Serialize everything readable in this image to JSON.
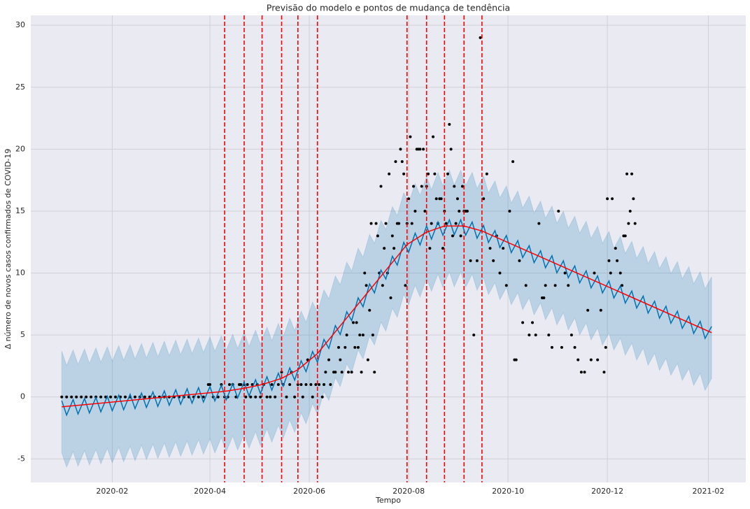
{
  "chart_data": {
    "type": "line",
    "title": "Previsão do modelo e pontos de mudança de tendência",
    "xlabel": "Tempo",
    "ylabel": "Δ número de novos casos confirmados de COVID-19",
    "xlim": [
      -19,
      420
    ],
    "ylim": [
      -6.9,
      30.8
    ],
    "xticks": [
      {
        "value": 31,
        "label": "2020-02"
      },
      {
        "value": 91,
        "label": "2020-04"
      },
      {
        "value": 152,
        "label": "2020-06"
      },
      {
        "value": 213,
        "label": "2020-08"
      },
      {
        "value": 274,
        "label": "2020-10"
      },
      {
        "value": 335,
        "label": "2020-12"
      },
      {
        "value": 397,
        "label": "2021-02"
      }
    ],
    "yticks": [
      -5,
      0,
      5,
      10,
      15,
      20,
      25,
      30
    ],
    "grid": true,
    "changepoints": {
      "color": "#ff0000",
      "x": [
        100,
        112,
        123,
        135,
        145,
        157,
        212,
        224,
        235,
        247,
        258
      ]
    },
    "series": [
      {
        "type": "band",
        "color": "#0072b2",
        "x": [
          0,
          3,
          7,
          10,
          14,
          17,
          21,
          24,
          28,
          31,
          35,
          38,
          42,
          45,
          49,
          52,
          56,
          59,
          63,
          66,
          70,
          73,
          77,
          80,
          84,
          87,
          91,
          94,
          98,
          101,
          105,
          108,
          112,
          115,
          119,
          122,
          126,
          129,
          133,
          136,
          140,
          143,
          147,
          150,
          154,
          157,
          161,
          164,
          168,
          171,
          175,
          178,
          182,
          185,
          189,
          192,
          196,
          199,
          203,
          206,
          210,
          213,
          217,
          220,
          224,
          227,
          231,
          234,
          238,
          241,
          245,
          248,
          252,
          255,
          259,
          262,
          266,
          269,
          273,
          276,
          280,
          283,
          287,
          290,
          294,
          297,
          301,
          304,
          308,
          311,
          315,
          318,
          322,
          325,
          329,
          332,
          336,
          339,
          343,
          346,
          350,
          353,
          357,
          360,
          364,
          367,
          371,
          374,
          378,
          381,
          385,
          388,
          392,
          395,
          399
        ],
        "upper": [
          3.7,
          2.54,
          3.79,
          2.62,
          3.87,
          2.71,
          3.96,
          2.8,
          4.05,
          2.89,
          4.14,
          2.97,
          4.22,
          3.06,
          4.31,
          3.15,
          4.4,
          3.24,
          4.49,
          3.33,
          4.58,
          3.41,
          4.66,
          3.5,
          4.75,
          3.59,
          4.84,
          3.68,
          4.93,
          3.77,
          5.05,
          3.92,
          5.2,
          4.08,
          5.39,
          4.27,
          5.63,
          4.55,
          5.92,
          4.87,
          6.35,
          5.36,
          6.92,
          6.04,
          7.67,
          6.8,
          8.64,
          7.92,
          9.76,
          9.04,
          10.88,
          10.16,
          12.0,
          11.28,
          13.12,
          12.4,
          14.24,
          13.52,
          15.36,
          14.64,
          16.48,
          15.68,
          17.22,
          16.27,
          17.8,
          16.74,
          18.12,
          17.05,
          18.3,
          17.1,
          18.3,
          17.06,
          18.12,
          16.81,
          17.84,
          16.47,
          17.43,
          16.06,
          17.03,
          15.65,
          16.62,
          15.25,
          16.21,
          14.84,
          15.8,
          14.43,
          15.4,
          14.02,
          14.99,
          13.62,
          14.58,
          13.21,
          14.18,
          12.8,
          13.77,
          12.4,
          13.36,
          11.99,
          12.96,
          11.58,
          12.55,
          11.18,
          12.14,
          10.77,
          11.73,
          10.36,
          11.32,
          9.95,
          10.92,
          9.54,
          10.51,
          9.13,
          10.1,
          8.73,
          9.69
        ],
        "lower": [
          -4.5,
          -5.66,
          -4.41,
          -5.58,
          -4.33,
          -5.49,
          -4.24,
          -5.4,
          -4.15,
          -5.31,
          -4.06,
          -5.23,
          -3.98,
          -5.14,
          -3.89,
          -5.05,
          -3.8,
          -4.96,
          -3.71,
          -4.87,
          -3.62,
          -4.79,
          -3.54,
          -4.7,
          -3.45,
          -4.61,
          -3.36,
          -4.52,
          -3.27,
          -4.43,
          -3.15,
          -4.28,
          -3.0,
          -4.12,
          -2.81,
          -3.93,
          -2.57,
          -3.65,
          -2.28,
          -3.33,
          -1.85,
          -2.84,
          -1.28,
          -2.16,
          -0.53,
          -1.4,
          0.44,
          -0.28,
          1.56,
          0.84,
          2.68,
          1.96,
          3.8,
          3.08,
          4.92,
          4.2,
          6.04,
          5.32,
          7.16,
          6.44,
          8.28,
          7.48,
          9.02,
          8.07,
          9.6,
          8.54,
          9.92,
          8.85,
          10.1,
          8.9,
          10.1,
          8.86,
          9.92,
          8.61,
          9.64,
          8.27,
          9.23,
          7.86,
          8.83,
          7.45,
          8.42,
          7.05,
          8.01,
          6.64,
          7.6,
          6.23,
          7.2,
          5.82,
          6.79,
          5.42,
          6.38,
          5.01,
          5.98,
          4.6,
          5.57,
          4.2,
          5.16,
          3.79,
          4.76,
          3.38,
          4.35,
          2.98,
          3.94,
          2.57,
          3.53,
          2.16,
          3.12,
          1.76,
          2.71,
          1.34,
          2.3,
          0.93,
          1.9,
          0.53,
          1.49
        ]
      },
      {
        "type": "line",
        "color": "#0072b2",
        "x": [
          0,
          3,
          7,
          10,
          14,
          17,
          21,
          24,
          28,
          31,
          35,
          38,
          42,
          45,
          49,
          52,
          56,
          59,
          63,
          66,
          70,
          73,
          77,
          80,
          84,
          87,
          91,
          94,
          98,
          101,
          105,
          108,
          112,
          115,
          119,
          122,
          126,
          129,
          133,
          136,
          140,
          143,
          147,
          150,
          154,
          157,
          161,
          164,
          168,
          171,
          175,
          178,
          182,
          185,
          189,
          192,
          196,
          199,
          203,
          206,
          210,
          213,
          217,
          220,
          224,
          227,
          231,
          234,
          238,
          241,
          245,
          248,
          252,
          255,
          259,
          262,
          266,
          269,
          273,
          276,
          280,
          283,
          287,
          290,
          294,
          297,
          301,
          304,
          308,
          311,
          315,
          318,
          322,
          325,
          329,
          332,
          336,
          339,
          343,
          346,
          350,
          353,
          357,
          360,
          364,
          367,
          371,
          374,
          378,
          381,
          385,
          388,
          392,
          395,
          399
        ],
        "values": [
          -0.3,
          -1.46,
          -0.21,
          -1.38,
          -0.13,
          -1.29,
          -0.04,
          -1.2,
          0.05,
          -1.11,
          0.14,
          -1.03,
          0.22,
          -0.94,
          0.31,
          -0.85,
          0.4,
          -0.76,
          0.49,
          -0.67,
          0.58,
          -0.59,
          0.66,
          -0.5,
          0.75,
          -0.41,
          0.84,
          -0.32,
          0.93,
          -0.23,
          1.05,
          -0.08,
          1.2,
          0.08,
          1.39,
          0.27,
          1.63,
          0.55,
          1.92,
          0.87,
          2.35,
          1.36,
          2.92,
          2.04,
          3.67,
          2.8,
          4.64,
          3.92,
          5.76,
          5.04,
          6.88,
          6.16,
          8.0,
          7.28,
          9.12,
          8.4,
          10.24,
          9.52,
          11.36,
          10.64,
          12.48,
          11.68,
          13.22,
          12.27,
          13.8,
          12.74,
          14.12,
          13.05,
          14.3,
          13.1,
          14.3,
          13.06,
          14.12,
          12.81,
          13.84,
          12.47,
          13.43,
          12.06,
          13.03,
          11.65,
          12.62,
          11.25,
          12.21,
          10.84,
          11.8,
          10.43,
          11.4,
          10.02,
          10.99,
          9.62,
          10.58,
          9.21,
          10.18,
          8.8,
          9.77,
          8.4,
          9.36,
          7.99,
          8.96,
          7.58,
          8.55,
          7.18,
          8.14,
          6.77,
          7.73,
          6.36,
          7.32,
          5.95,
          6.92,
          5.54,
          6.51,
          5.13,
          6.1,
          4.73,
          5.69
        ]
      },
      {
        "type": "line",
        "color": "#ff0000",
        "x": [
          0,
          100,
          112,
          123,
          135,
          145,
          157,
          212,
          224,
          235,
          247,
          258,
          399
        ],
        "values": [
          -0.8,
          0.45,
          0.7,
          1.0,
          1.5,
          2.2,
          3.5,
          12.3,
          13.3,
          13.8,
          13.8,
          13.4,
          5.19
        ]
      },
      {
        "type": "scatter",
        "color": "#000000",
        "x": [
          0,
          3,
          6,
          9,
          12,
          15,
          18,
          21,
          24,
          27,
          30,
          33,
          36,
          39,
          42,
          45,
          48,
          51,
          54,
          57,
          60,
          63,
          66,
          69,
          72,
          75,
          78,
          81,
          84,
          87,
          90,
          91,
          93,
          96,
          98,
          100,
          102,
          103,
          105,
          107,
          109,
          110,
          112,
          113,
          114,
          116,
          117,
          119,
          120,
          122,
          124,
          126,
          128,
          129,
          131,
          133,
          135,
          136,
          138,
          140,
          141,
          143,
          145,
          147,
          148,
          150,
          151,
          153,
          154,
          156,
          158,
          160,
          161,
          162,
          164,
          165,
          167,
          168,
          170,
          171,
          172,
          174,
          175,
          176,
          178,
          179,
          180,
          181,
          182,
          183,
          184,
          185,
          186,
          187,
          188,
          189,
          190,
          191,
          192,
          193,
          194,
          195,
          196,
          197,
          198,
          199,
          200,
          201,
          202,
          203,
          204,
          205,
          206,
          207,
          208,
          209,
          210,
          211,
          212,
          213,
          214,
          215,
          216,
          217,
          218,
          219,
          220,
          221,
          222,
          223,
          224,
          225,
          226,
          227,
          228,
          229,
          230,
          231,
          232,
          233,
          234,
          235,
          236,
          237,
          238,
          239,
          240,
          241,
          242,
          243,
          244,
          245,
          246,
          247,
          248,
          249,
          251,
          253,
          255,
          257,
          259,
          261,
          263,
          265,
          267,
          269,
          271,
          273,
          275,
          277,
          278,
          279,
          281,
          283,
          285,
          287,
          289,
          291,
          293,
          295,
          296,
          297,
          299,
          301,
          303,
          305,
          307,
          309,
          311,
          313,
          315,
          317,
          319,
          321,
          323,
          325,
          327,
          329,
          331,
          333,
          334,
          335,
          336,
          337,
          338,
          340,
          341,
          343,
          344,
          345,
          346,
          347,
          348,
          349,
          350,
          351,
          352
        ],
        "values": [
          0,
          0,
          0,
          0,
          0,
          0,
          0,
          0,
          0,
          0,
          0,
          0,
          0,
          0,
          0,
          0,
          0,
          0,
          0,
          0,
          0,
          0,
          0,
          0,
          0,
          0,
          0,
          0,
          0,
          0,
          1,
          1,
          0,
          0,
          1,
          0,
          0,
          1,
          1,
          0,
          1,
          1,
          1,
          0,
          1,
          0,
          1,
          0,
          1,
          0,
          1,
          0,
          0,
          1,
          0,
          1,
          2,
          1,
          0,
          1,
          2,
          0,
          1,
          1,
          0,
          1,
          3,
          1,
          0,
          1,
          1,
          0,
          1,
          2,
          3,
          1,
          2,
          2,
          4,
          3,
          2,
          4,
          5,
          2,
          2,
          6,
          4,
          6,
          4,
          5,
          2,
          5,
          10,
          9,
          3,
          7,
          14,
          5,
          2,
          14,
          13,
          10,
          17,
          9,
          12,
          14,
          10,
          18,
          8,
          13,
          12,
          19,
          14,
          14,
          20,
          19,
          18,
          9,
          14,
          16,
          21,
          14,
          17,
          15,
          20,
          20,
          20,
          17,
          20,
          15,
          17,
          18,
          12,
          14,
          21,
          18,
          16,
          14,
          16,
          16,
          12,
          15,
          14,
          18,
          22,
          20,
          13,
          17,
          14,
          16,
          15,
          13,
          17,
          15,
          15,
          15,
          11,
          5,
          11,
          29,
          16,
          18,
          12,
          11,
          13,
          10,
          12,
          9,
          15,
          19,
          3,
          3,
          11,
          6,
          9,
          5,
          6,
          5,
          14,
          8,
          8,
          9,
          5,
          4,
          9,
          15,
          4,
          10,
          9,
          5,
          4,
          3,
          2,
          2,
          7,
          3,
          10,
          3,
          7,
          2,
          4,
          16,
          11,
          10,
          16,
          12,
          11,
          10,
          9,
          13,
          13,
          18,
          14,
          15,
          18,
          16,
          14
        ]
      }
    ]
  }
}
